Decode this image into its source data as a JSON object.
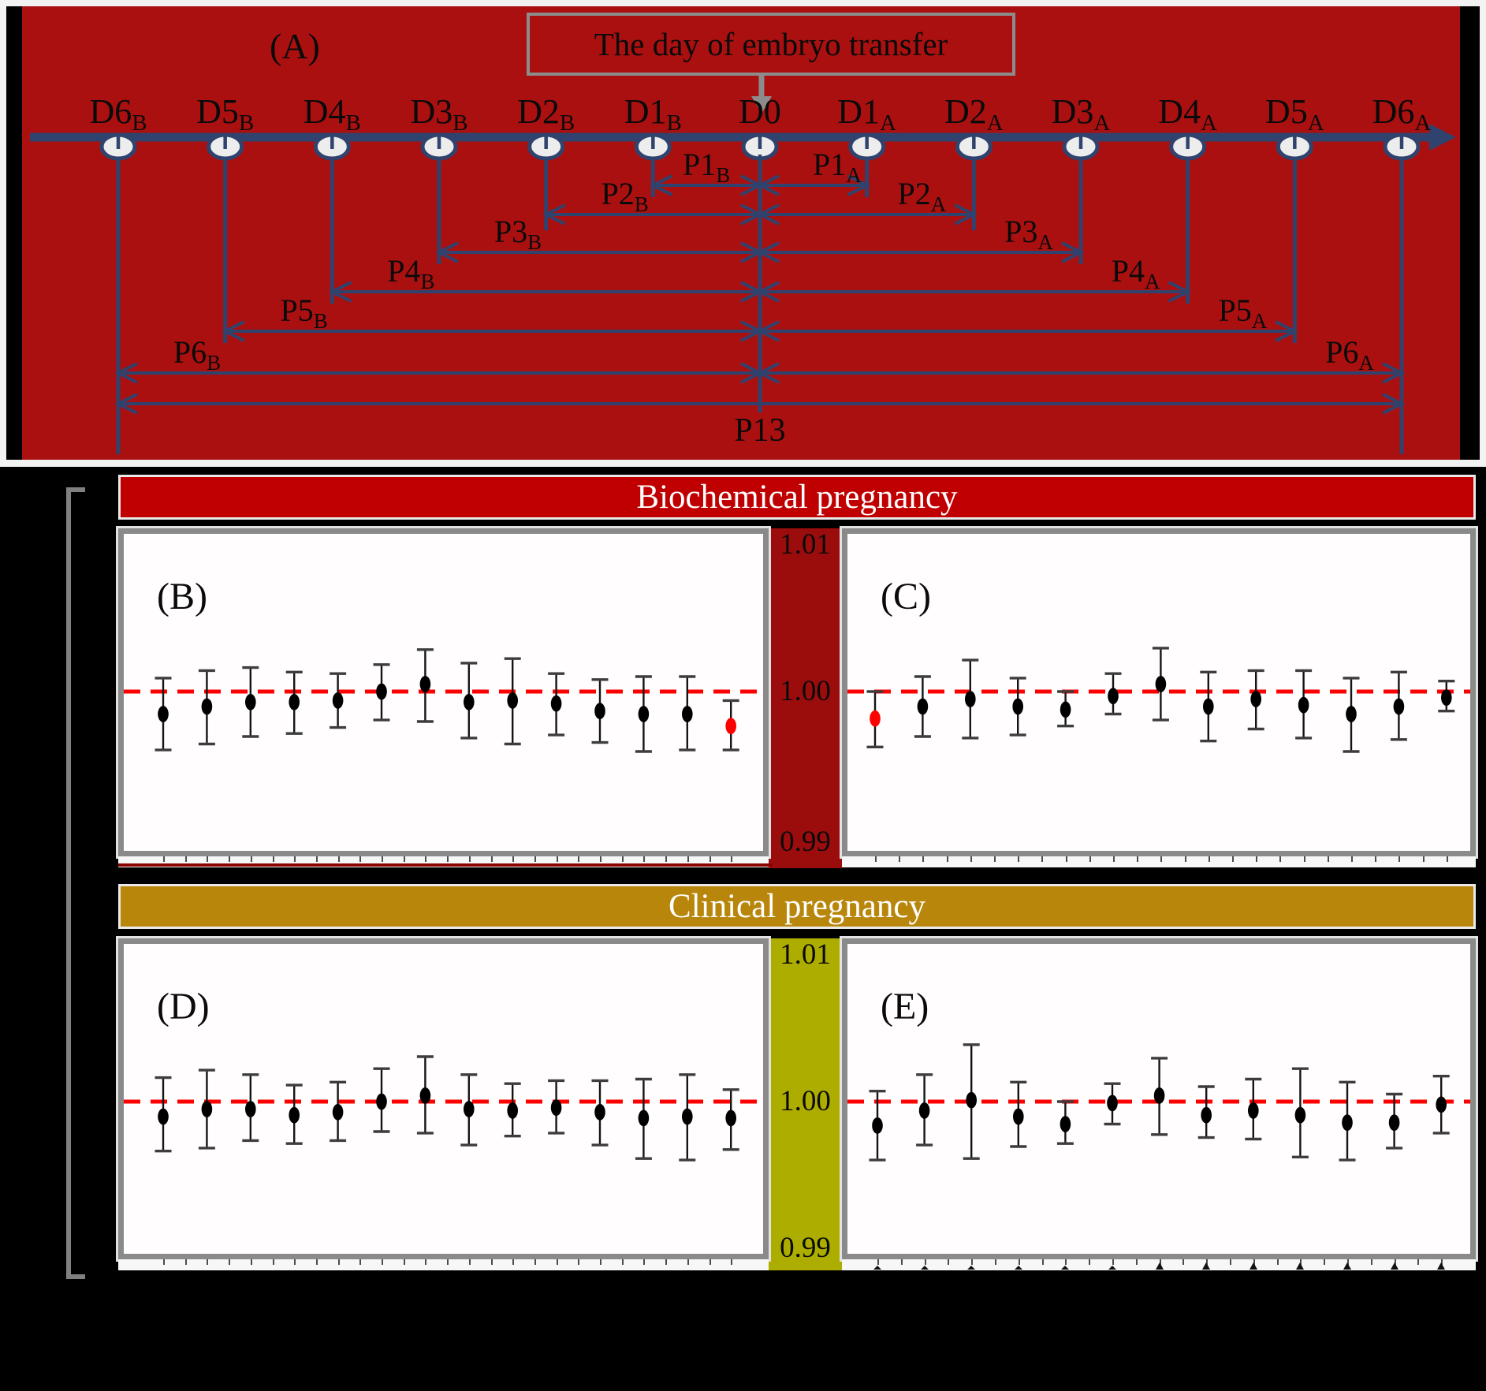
{
  "colors": {
    "panel_a_bg": "#AA1010",
    "timeline_navy": "#2F436E",
    "marker_fill": "#EDEDED",
    "gray_box_border": "#8C8C8C",
    "biochemical_band": "#C00000",
    "biochemical_strip": "#9B0D0D",
    "clinical_band": "#B8860B",
    "clinical_strip": "#ADAD00",
    "reference_line": "#FE0000",
    "data_point": "#000000",
    "highlight_point": "#FF0000",
    "panel_border": "#8A8A8A",
    "bracket": "#808080"
  },
  "panel_a": {
    "label": "(A)",
    "box_title": "The day of embryo transfer",
    "days": [
      {
        "main": "D6",
        "sub": "B"
      },
      {
        "main": "D5",
        "sub": "B"
      },
      {
        "main": "D4",
        "sub": "B"
      },
      {
        "main": "D3",
        "sub": "B"
      },
      {
        "main": "D2",
        "sub": "B"
      },
      {
        "main": "D1",
        "sub": "B"
      },
      {
        "main": "D0",
        "sub": ""
      },
      {
        "main": "D1",
        "sub": "A"
      },
      {
        "main": "D2",
        "sub": "A"
      },
      {
        "main": "D3",
        "sub": "A"
      },
      {
        "main": "D4",
        "sub": "A"
      },
      {
        "main": "D5",
        "sub": "A"
      },
      {
        "main": "D6",
        "sub": "A"
      }
    ],
    "intervals": [
      {
        "name": "P1",
        "sub": "B",
        "day": 5,
        "row": 1
      },
      {
        "name": "P2",
        "sub": "B",
        "day": 4,
        "row": 2
      },
      {
        "name": "P3",
        "sub": "B",
        "day": 3,
        "row": 3
      },
      {
        "name": "P4",
        "sub": "B",
        "day": 2,
        "row": 4
      },
      {
        "name": "P5",
        "sub": "B",
        "day": 1,
        "row": 5
      },
      {
        "name": "P6",
        "sub": "B",
        "day": 0,
        "row": 6
      },
      {
        "name": "P1",
        "sub": "A",
        "day": 7,
        "row": 1
      },
      {
        "name": "P2",
        "sub": "A",
        "day": 8,
        "row": 2
      },
      {
        "name": "P3",
        "sub": "A",
        "day": 9,
        "row": 3
      },
      {
        "name": "P4",
        "sub": "A",
        "day": 10,
        "row": 4
      },
      {
        "name": "P5",
        "sub": "A",
        "day": 11,
        "row": 5
      },
      {
        "name": "P6",
        "sub": "A",
        "day": 12,
        "row": 6
      }
    ],
    "total_interval": {
      "name": "P13",
      "from_day": 0,
      "to_day": 12
    }
  },
  "sections": [
    {
      "header": "Biochemical pregnancy",
      "band_color": "#C00000",
      "strip_color": "#9B0D0D",
      "axis_ticks": [
        "1.01",
        "1.00",
        "0.99"
      ],
      "left_label": "(B)",
      "right_label": "(C)"
    },
    {
      "header": "Clinical pregnancy",
      "band_color": "#B8860B",
      "strip_color": "#ADAD00",
      "axis_ticks": [
        "1.01",
        "1.00",
        "0.99"
      ],
      "left_label": "(D)",
      "right_label": "(E)"
    }
  ],
  "chart_data": [
    {
      "type": "scatter",
      "panel": "B",
      "section": "Biochemical pregnancy",
      "ylim": [
        0.99,
        1.01
      ],
      "yticks": [
        "1.01",
        "1.00",
        "0.99"
      ],
      "reference_line": 1.0,
      "x_axis_labels_visible": false,
      "values": [
        0.9985,
        0.999,
        0.9993,
        0.9993,
        0.9994,
        1.0,
        1.0005,
        0.9993,
        0.9994,
        0.9992,
        0.9987,
        0.9985,
        0.9985,
        0.9977
      ],
      "ci_low": [
        0.9961,
        0.9965,
        0.997,
        0.9972,
        0.9976,
        0.9981,
        0.998,
        0.9969,
        0.9965,
        0.9971,
        0.9966,
        0.996,
        0.9961,
        0.9961
      ],
      "ci_high": [
        1.0009,
        1.0014,
        1.0016,
        1.0013,
        1.0012,
        1.0018,
        1.0028,
        1.0019,
        1.0022,
        1.0012,
        1.0008,
        1.001,
        1.001,
        0.9994
      ],
      "highlight_index": 13,
      "highlight_color": "#FF0000"
    },
    {
      "type": "scatter",
      "panel": "C",
      "section": "Biochemical pregnancy",
      "ylim": [
        0.99,
        1.01
      ],
      "yticks": [
        "1.01",
        "1.00",
        "0.99"
      ],
      "reference_line": 1.0,
      "x_axis_labels_visible": false,
      "values": [
        0.9982,
        0.999,
        0.9995,
        0.999,
        0.9988,
        0.9997,
        1.0005,
        0.999,
        0.9995,
        0.9991,
        0.9985,
        0.999,
        0.9996
      ],
      "ci_low": [
        0.9963,
        0.997,
        0.9969,
        0.9971,
        0.9977,
        0.9985,
        0.9981,
        0.9967,
        0.9975,
        0.9969,
        0.996,
        0.9968,
        0.9987
      ],
      "ci_high": [
        1.0,
        1.001,
        1.0021,
        1.0009,
        1.0,
        1.0012,
        1.0029,
        1.0013,
        1.0014,
        1.0014,
        1.0009,
        1.0013,
        1.0007
      ],
      "highlight_index": 0,
      "highlight_color": "#FF0000"
    },
    {
      "type": "scatter",
      "panel": "D",
      "section": "Clinical pregnancy",
      "ylim": [
        0.99,
        1.01
      ],
      "yticks": [
        "1.01",
        "1.00",
        "0.99"
      ],
      "reference_line": 1.0,
      "x_axis_labels_visible": false,
      "values": [
        0.999,
        0.9995,
        0.9995,
        0.9991,
        0.9993,
        1.0,
        1.0004,
        0.9995,
        0.9994,
        0.9996,
        0.9993,
        0.9989,
        0.999,
        0.9989
      ],
      "ci_low": [
        0.9967,
        0.9969,
        0.9974,
        0.9972,
        0.9974,
        0.998,
        0.9979,
        0.9971,
        0.9977,
        0.9979,
        0.9971,
        0.9962,
        0.9961,
        0.9968
      ],
      "ci_high": [
        1.0016,
        1.0021,
        1.0018,
        1.0011,
        1.0013,
        1.0022,
        1.003,
        1.0018,
        1.0012,
        1.0014,
        1.0014,
        1.0015,
        1.0018,
        1.0008
      ],
      "highlight_index": null,
      "highlight_color": null
    },
    {
      "type": "scatter",
      "panel": "E",
      "section": "Clinical pregnancy",
      "ylim": [
        0.99,
        1.01
      ],
      "yticks": [
        "1.01",
        "1.00",
        "0.99"
      ],
      "reference_line": 1.0,
      "x_axis_labels_visible": false,
      "values": [
        0.9984,
        0.9994,
        1.0001,
        0.999,
        0.9985,
        0.9999,
        1.0004,
        0.9991,
        0.9994,
        0.9991,
        0.9986,
        0.9986,
        0.9998
      ],
      "ci_low": [
        0.9961,
        0.9971,
        0.9962,
        0.997,
        0.9972,
        0.9985,
        0.9978,
        0.9976,
        0.9975,
        0.9963,
        0.9961,
        0.9969,
        0.9979
      ],
      "ci_high": [
        1.0007,
        1.0018,
        1.0038,
        1.0013,
        1.0,
        1.0012,
        1.0029,
        1.001,
        1.0015,
        1.0022,
        1.0013,
        1.0005,
        1.0017
      ],
      "highlight_index": null,
      "highlight_color": null
    }
  ]
}
